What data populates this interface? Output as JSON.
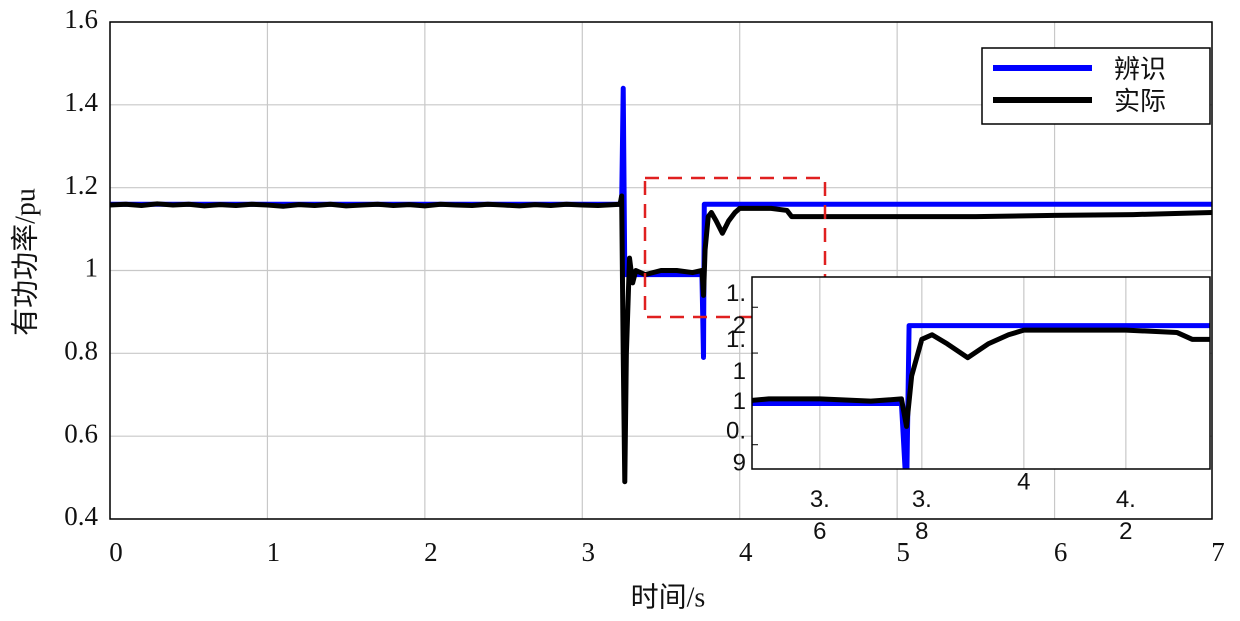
{
  "chart_data": [
    {
      "type": "line",
      "x_label": "时间/s",
      "y_label": "有功功率/pu",
      "xlim": [
        0,
        7
      ],
      "xticks": [
        0,
        1,
        2,
        3,
        4,
        5,
        6,
        7
      ],
      "ylim": [
        0.4,
        1.6
      ],
      "yticks": [
        0.4,
        0.6,
        0.8,
        1,
        1.2,
        1.4,
        1.6
      ],
      "grid": true,
      "legend": "upper right",
      "series": [
        {
          "name": "辨识",
          "color": "#0000ff",
          "x": [
            0,
            3.25,
            3.26,
            3.27,
            3.76,
            3.77,
            3.775,
            7
          ],
          "values": [
            1.16,
            1.16,
            1.44,
            0.99,
            0.99,
            0.79,
            1.16,
            1.16
          ]
        },
        {
          "name": "实际",
          "color": "#000000",
          "x": [
            0,
            0.1,
            0.2,
            0.3,
            0.4,
            0.5,
            0.6,
            0.7,
            0.8,
            0.9,
            1.0,
            1.1,
            1.2,
            1.3,
            1.4,
            1.5,
            1.6,
            1.7,
            1.8,
            1.9,
            2.0,
            2.1,
            2.2,
            2.3,
            2.4,
            2.5,
            2.6,
            2.7,
            2.8,
            2.9,
            3.0,
            3.1,
            3.2,
            3.24,
            3.25,
            3.26,
            3.27,
            3.28,
            3.3,
            3.32,
            3.34,
            3.4,
            3.5,
            3.6,
            3.7,
            3.76,
            3.77,
            3.78,
            3.8,
            3.82,
            3.85,
            3.89,
            3.93,
            3.97,
            4.0,
            4.1,
            4.2,
            4.3,
            4.33,
            4.5,
            5.0,
            5.5,
            6.0,
            6.5,
            7.0
          ],
          "values": [
            1.158,
            1.16,
            1.157,
            1.161,
            1.158,
            1.16,
            1.156,
            1.159,
            1.157,
            1.16,
            1.158,
            1.155,
            1.159,
            1.157,
            1.16,
            1.156,
            1.158,
            1.16,
            1.157,
            1.159,
            1.156,
            1.16,
            1.158,
            1.157,
            1.16,
            1.158,
            1.156,
            1.159,
            1.157,
            1.16,
            1.158,
            1.157,
            1.159,
            1.16,
            1.18,
            0.8,
            0.49,
            0.8,
            1.03,
            0.97,
            1.0,
            0.99,
            1.0,
            1.0,
            0.995,
            1.0,
            0.94,
            1.05,
            1.13,
            1.14,
            1.12,
            1.09,
            1.12,
            1.14,
            1.15,
            1.15,
            1.15,
            1.145,
            1.13,
            1.13,
            1.13,
            1.13,
            1.133,
            1.135,
            1.14
          ]
        }
      ]
    },
    {
      "type": "line",
      "xlim": [
        3.467,
        4.365
      ],
      "xticks": [
        3.6,
        3.8,
        4,
        4.2
      ],
      "ylim": [
        0.847,
        1.266
      ],
      "yticks": [
        0.9,
        1,
        1.1,
        1.2
      ],
      "grid": true
    }
  ]
}
